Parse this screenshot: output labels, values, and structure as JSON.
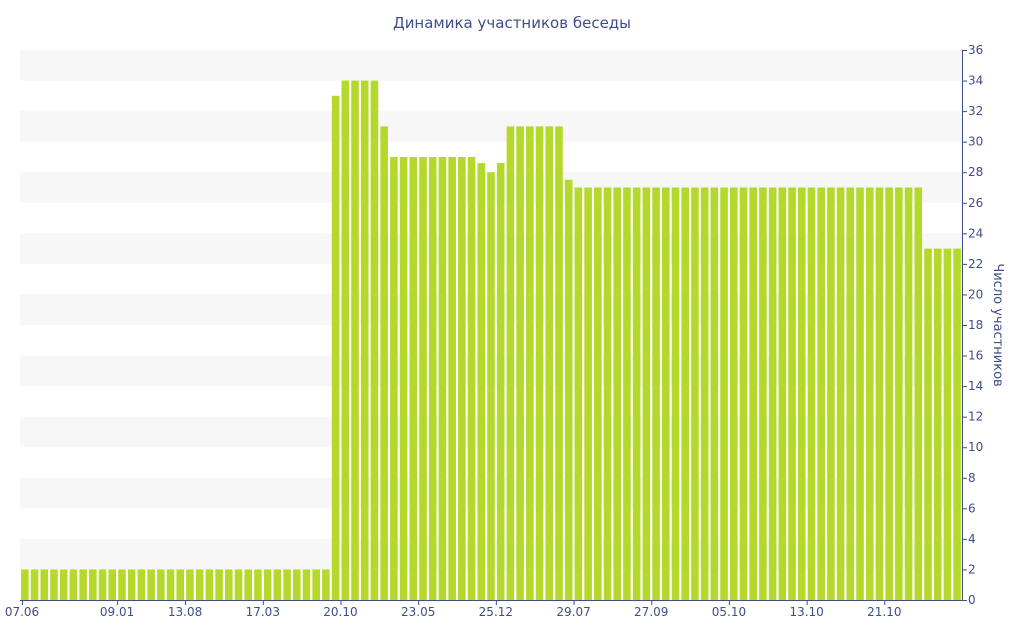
{
  "chart_data": {
    "type": "bar",
    "title": "Динамика участников беседы",
    "xlabel": "",
    "ylabel": "Число участников",
    "ylim": [
      0,
      36
    ],
    "y_ticks": [
      0,
      2,
      4,
      6,
      8,
      10,
      12,
      14,
      16,
      18,
      20,
      22,
      24,
      26,
      28,
      30,
      32,
      34,
      36
    ],
    "y_axis_position": "right",
    "grid": "alternating horizontal bands",
    "legend": "none",
    "bar_color": "#b5d92a",
    "band_color": "#f7f7f7",
    "text_color": "#3e4e8a",
    "x_tick_labels": [
      {
        "label": "07.06",
        "index": 0
      },
      {
        "label": "09.01",
        "index": 9.5
      },
      {
        "label": "13.08",
        "index": 16.5
      },
      {
        "label": "17.03",
        "index": 24.5
      },
      {
        "label": "20.10",
        "index": 32.5
      },
      {
        "label": "23.05",
        "index": 40.5
      },
      {
        "label": "25.12",
        "index": 48.5
      },
      {
        "label": "29.07",
        "index": 56.5
      },
      {
        "label": "27.09",
        "index": 64.5
      },
      {
        "label": "05.10",
        "index": 72.5
      },
      {
        "label": "13.10",
        "index": 80.5
      },
      {
        "label": "21.10",
        "index": 88.5
      }
    ],
    "values": [
      2,
      2,
      2,
      2,
      2,
      2,
      2,
      2,
      2,
      2,
      2,
      2,
      2,
      2,
      2,
      2,
      2,
      2,
      2,
      2,
      2,
      2,
      2,
      2,
      2,
      2,
      2,
      2,
      2,
      2,
      2,
      2,
      33,
      34,
      34,
      34,
      34,
      31,
      29,
      29,
      29,
      29,
      29,
      29,
      29,
      29,
      29,
      28.6,
      28,
      28.6,
      31,
      31,
      31,
      31,
      31,
      31,
      27.5,
      27,
      27,
      27,
      27,
      27,
      27,
      27,
      27,
      27,
      27,
      27,
      27,
      27,
      27,
      27,
      27,
      27,
      27,
      27,
      27,
      27,
      27,
      27,
      27,
      27,
      27,
      27,
      27,
      27,
      27,
      27,
      27,
      27,
      27,
      27,
      27,
      23,
      23,
      23,
      23
    ]
  }
}
